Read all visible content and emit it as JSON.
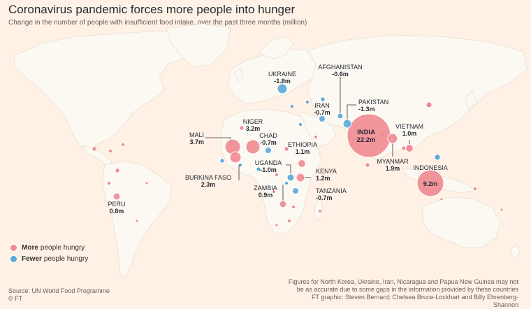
{
  "header": {
    "title": "Coronavirus pandemic forces more people into hunger",
    "subtitle": "Change in the number of people with insufficient food intake, over the past three months (million)"
  },
  "colors": {
    "more": "#f08a91",
    "fewer": "#5aa8d8",
    "land": "#fcf8f2",
    "border": "#e8ddd0",
    "ocean": "#fff1e5"
  },
  "legend": {
    "more_bold": "More",
    "more_rest": "people hungry",
    "fewer_bold": "Fewer",
    "fewer_rest": "people hungry"
  },
  "source": {
    "line1": "Source: UN World Food Programme",
    "line2": "© FT"
  },
  "note": {
    "line1": "Figures for North Korea, Ukraine, Iran, Nicaragua and Papua New Guinea may not",
    "line2": "be as accurate due to some gaps in the information provided by these countries",
    "line3": "FT graphic: Steven Bernard; Chelsea Bruce-Lockhart and Billy Ehrenberg-Shannon"
  },
  "labelled_countries": [
    {
      "name": "UKRAINE",
      "value": "-1.8m",
      "change": -1.8
    },
    {
      "name": "AFGHANISTAN",
      "value": "-0.6m",
      "change": -0.6
    },
    {
      "name": "PAKISTAN",
      "value": "-1.3m",
      "change": -1.3
    },
    {
      "name": "IRAN",
      "value": "-0.7m",
      "change": -0.7
    },
    {
      "name": "NIGER",
      "value": "3.2m",
      "change": 3.2
    },
    {
      "name": "MALI",
      "value": "3.7m",
      "change": 3.7
    },
    {
      "name": "CHAD",
      "value": "-0.7m",
      "change": -0.7
    },
    {
      "name": "ETHIOPIA",
      "value": "1.1m",
      "change": 1.1
    },
    {
      "name": "INDIA",
      "value": "22.2m",
      "change": 22.2
    },
    {
      "name": "VIETNAM",
      "value": "1.0m",
      "change": 1.0
    },
    {
      "name": "MYANMAR",
      "value": "1.9m",
      "change": 1.9
    },
    {
      "name": "INDONESIA",
      "value": "9.2m",
      "change": 9.2
    },
    {
      "name": "UGANDA",
      "value": "-1.0m",
      "change": -1.0
    },
    {
      "name": "KENYA",
      "value": "1.2m",
      "change": 1.2
    },
    {
      "name": "BURKINA FASO",
      "value": "2.3m",
      "change": 2.3
    },
    {
      "name": "ZAMBIA",
      "value": "0.9m",
      "change": 0.9
    },
    {
      "name": "TANZANIA",
      "value": "-0.7m",
      "change": -0.7
    },
    {
      "name": "PERU",
      "value": "0.8m",
      "change": 0.8
    }
  ]
}
